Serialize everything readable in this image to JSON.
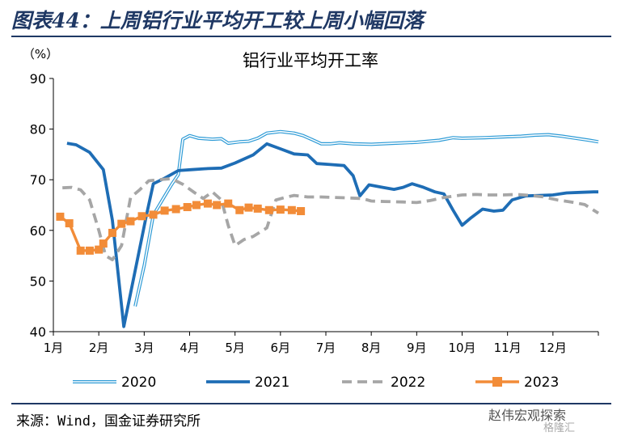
{
  "figure_title": "图表44：上周铝行业平均开工较上周小幅回落",
  "source_note": "来源：Wind，国金证券研究所",
  "watermark": "赵伟宏观探索",
  "watermark_sub": "格隆汇",
  "chart_data": {
    "type": "line",
    "title": "铝行业平均开工率",
    "ylabel": "（%）",
    "ylim": [
      40,
      90
    ],
    "yticks": [
      40,
      50,
      60,
      70,
      80,
      90
    ],
    "xlim": [
      1,
      13
    ],
    "x_ticks": [
      {
        "label": "1月",
        "x": 1
      },
      {
        "label": "2月",
        "x": 2
      },
      {
        "label": "3月",
        "x": 3
      },
      {
        "label": "4月",
        "x": 4
      },
      {
        "label": "5月",
        "x": 5
      },
      {
        "label": "6月",
        "x": 6
      },
      {
        "label": "7月",
        "x": 7
      },
      {
        "label": "8月",
        "x": 8
      },
      {
        "label": "9月",
        "x": 9
      },
      {
        "label": "10月",
        "x": 10
      },
      {
        "label": "11月",
        "x": 11
      },
      {
        "label": "12月",
        "x": 12
      }
    ],
    "grid": false,
    "legend_position": "bottom",
    "series": [
      {
        "name": "2020",
        "style": "double",
        "color": "#2e9bd6",
        "points": [
          [
            2.8,
            45
          ],
          [
            3.0,
            53
          ],
          [
            3.2,
            63
          ],
          [
            3.4,
            66
          ],
          [
            3.6,
            69
          ],
          [
            3.75,
            71
          ],
          [
            3.85,
            78
          ],
          [
            4.0,
            78.7
          ],
          [
            4.2,
            78.2
          ],
          [
            4.5,
            78
          ],
          [
            4.7,
            78.1
          ],
          [
            4.85,
            77.2
          ],
          [
            5.1,
            77.5
          ],
          [
            5.3,
            77.6
          ],
          [
            5.5,
            78.2
          ],
          [
            5.7,
            79.2
          ],
          [
            6.0,
            79.5
          ],
          [
            6.3,
            79.2
          ],
          [
            6.5,
            78.7
          ],
          [
            6.7,
            77.9
          ],
          [
            6.9,
            77.1
          ],
          [
            7.1,
            77.1
          ],
          [
            7.3,
            77.3
          ],
          [
            7.6,
            77.1
          ],
          [
            8.0,
            77
          ],
          [
            8.5,
            77.2
          ],
          [
            9.0,
            77.4
          ],
          [
            9.5,
            77.8
          ],
          [
            9.8,
            78.3
          ],
          [
            10.0,
            78.2
          ],
          [
            10.5,
            78.3
          ],
          [
            11.0,
            78.5
          ],
          [
            11.3,
            78.6
          ],
          [
            11.6,
            78.8
          ],
          [
            11.9,
            78.9
          ],
          [
            12.2,
            78.6
          ],
          [
            12.5,
            78.2
          ],
          [
            12.8,
            77.8
          ],
          [
            13.0,
            77.5
          ]
        ]
      },
      {
        "name": "2021",
        "style": "solid",
        "color": "#1e6db5",
        "points": [
          [
            1.3,
            77.2
          ],
          [
            1.5,
            76.9
          ],
          [
            1.8,
            75.4
          ],
          [
            2.1,
            72
          ],
          [
            2.3,
            62
          ],
          [
            2.55,
            41
          ],
          [
            2.8,
            52
          ],
          [
            3.05,
            63
          ],
          [
            3.2,
            69.2
          ],
          [
            3.45,
            70.3
          ],
          [
            3.75,
            71.8
          ],
          [
            4.05,
            72
          ],
          [
            4.4,
            72.2
          ],
          [
            4.7,
            72.3
          ],
          [
            5.0,
            73.3
          ],
          [
            5.4,
            74.9
          ],
          [
            5.7,
            77.1
          ],
          [
            6.0,
            76.1
          ],
          [
            6.3,
            75.1
          ],
          [
            6.6,
            74.9
          ],
          [
            6.8,
            73.2
          ],
          [
            7.1,
            73
          ],
          [
            7.4,
            72.8
          ],
          [
            7.6,
            70.8
          ],
          [
            7.75,
            66.8
          ],
          [
            7.95,
            69
          ],
          [
            8.25,
            68.5
          ],
          [
            8.5,
            68.1
          ],
          [
            8.7,
            68.5
          ],
          [
            8.9,
            69.2
          ],
          [
            9.15,
            68.5
          ],
          [
            9.4,
            67.6
          ],
          [
            9.6,
            67.2
          ],
          [
            9.8,
            64
          ],
          [
            10.0,
            61
          ],
          [
            10.2,
            62.5
          ],
          [
            10.45,
            64.2
          ],
          [
            10.7,
            63.8
          ],
          [
            10.9,
            64
          ],
          [
            11.1,
            66
          ],
          [
            11.4,
            66.8
          ],
          [
            11.7,
            66.9
          ],
          [
            12.0,
            67
          ],
          [
            12.3,
            67.4
          ],
          [
            12.6,
            67.5
          ],
          [
            12.9,
            67.6
          ],
          [
            13.0,
            67.6
          ]
        ]
      },
      {
        "name": "2022",
        "style": "dashed",
        "color": "#a6a6a6",
        "points": [
          [
            1.2,
            68.4
          ],
          [
            1.4,
            68.5
          ],
          [
            1.6,
            68
          ],
          [
            1.8,
            66
          ],
          [
            2.0,
            60
          ],
          [
            2.15,
            55
          ],
          [
            2.3,
            54.2
          ],
          [
            2.5,
            57
          ],
          [
            2.7,
            66.5
          ],
          [
            2.9,
            68
          ],
          [
            3.1,
            69.8
          ],
          [
            3.3,
            70
          ],
          [
            3.6,
            70.2
          ],
          [
            3.85,
            69.1
          ],
          [
            4.1,
            67.5
          ],
          [
            4.3,
            66.3
          ],
          [
            4.5,
            67.6
          ],
          [
            4.7,
            66
          ],
          [
            4.85,
            61
          ],
          [
            5.0,
            57
          ],
          [
            5.2,
            58.2
          ],
          [
            5.4,
            58.8
          ],
          [
            5.7,
            60.5
          ],
          [
            5.9,
            66
          ],
          [
            6.1,
            66.5
          ],
          [
            6.3,
            66.9
          ],
          [
            6.6,
            66.6
          ],
          [
            6.9,
            66.6
          ],
          [
            7.2,
            66.5
          ],
          [
            7.5,
            66.4
          ],
          [
            7.8,
            66.3
          ],
          [
            8.0,
            65.8
          ],
          [
            8.3,
            65.7
          ],
          [
            8.7,
            65.6
          ],
          [
            9.0,
            65.5
          ],
          [
            9.3,
            65.9
          ],
          [
            9.6,
            66.5
          ],
          [
            10.0,
            67
          ],
          [
            10.3,
            67.1
          ],
          [
            10.6,
            67
          ],
          [
            10.9,
            67
          ],
          [
            11.2,
            67.1
          ],
          [
            11.5,
            66.9
          ],
          [
            11.8,
            66.6
          ],
          [
            12.1,
            66
          ],
          [
            12.4,
            65.6
          ],
          [
            12.7,
            65.1
          ],
          [
            13.0,
            63.4
          ]
        ]
      },
      {
        "name": "2023",
        "style": "marker",
        "color": "#f28c38",
        "points": [
          [
            1.15,
            62.7
          ],
          [
            1.35,
            61.4
          ],
          [
            1.6,
            56
          ],
          [
            1.8,
            56
          ],
          [
            2.0,
            56.2
          ],
          [
            2.1,
            57.4
          ],
          [
            2.3,
            59.5
          ],
          [
            2.5,
            61.3
          ],
          [
            2.7,
            61.8
          ],
          [
            2.95,
            62.8
          ],
          [
            3.2,
            63.1
          ],
          [
            3.45,
            63.9
          ],
          [
            3.7,
            64.2
          ],
          [
            3.95,
            64.6
          ],
          [
            4.15,
            65
          ],
          [
            4.4,
            65.3
          ],
          [
            4.6,
            65
          ],
          [
            4.85,
            65.3
          ],
          [
            5.1,
            64
          ],
          [
            5.3,
            64.5
          ],
          [
            5.5,
            64.3
          ],
          [
            5.75,
            64
          ],
          [
            6.0,
            64.1
          ],
          [
            6.25,
            64
          ],
          [
            6.45,
            63.8
          ]
        ]
      }
    ]
  }
}
